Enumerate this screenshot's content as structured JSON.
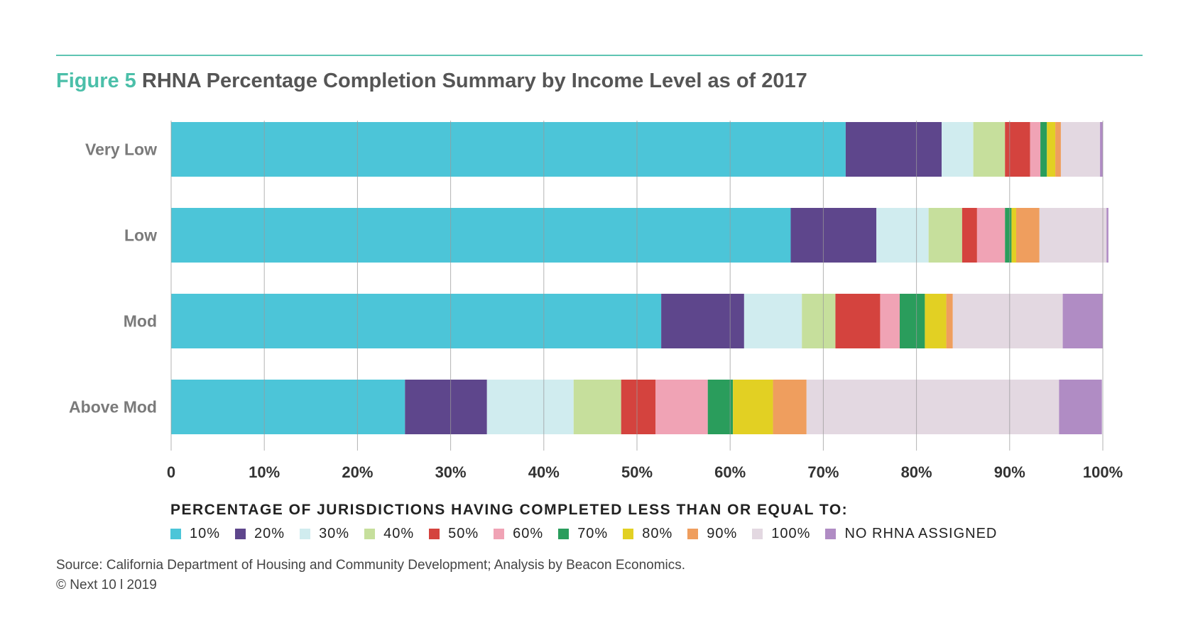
{
  "header": {
    "figure_label": "Figure 5",
    "title": "RHNA Percentage Completion Summary by Income Level as of 2017"
  },
  "legend_title": "PERCENTAGE OF JURISDICTIONS HAVING COMPLETED LESS THAN OR EQUAL TO:",
  "footer": {
    "source": "Source: California Department of Housing and Community Development; Analysis by Beacon Economics.",
    "copyright": "© Next 10 l 2019"
  },
  "colors": {
    "accent": "#4bbfa9",
    "grid": "#999999",
    "axis_label": "#7a7a7a"
  },
  "chart_data": {
    "type": "bar",
    "orientation": "horizontal",
    "stacked": true,
    "categories": [
      "Very Low",
      "Low",
      "Mod",
      "Above Mod"
    ],
    "xlim": [
      0,
      100
    ],
    "x_ticks": [
      "0",
      "10%",
      "20%",
      "30%",
      "40%",
      "50%",
      "60%",
      "70%",
      "80%",
      "90%",
      "100%"
    ],
    "grid": true,
    "legend_position": "bottom",
    "series": [
      {
        "name": "10%",
        "color": "#4cc5d8",
        "values": [
          72.4,
          66.5,
          52.6,
          25.1
        ]
      },
      {
        "name": "20%",
        "color": "#5e468c",
        "values": [
          10.3,
          9.2,
          8.9,
          8.8
        ]
      },
      {
        "name": "30%",
        "color": "#d0ecef",
        "values": [
          3.4,
          5.6,
          6.2,
          9.3
        ]
      },
      {
        "name": "40%",
        "color": "#c6df9c",
        "values": [
          3.4,
          3.6,
          3.6,
          5.1
        ]
      },
      {
        "name": "50%",
        "color": "#d4433e",
        "values": [
          2.7,
          1.6,
          4.8,
          3.7
        ]
      },
      {
        "name": "60%",
        "color": "#f0a3b5",
        "values": [
          1.1,
          3.0,
          2.1,
          5.6
        ]
      },
      {
        "name": "70%",
        "color": "#2a9d5c",
        "values": [
          0.7,
          0.7,
          2.7,
          2.7
        ]
      },
      {
        "name": "80%",
        "color": "#e2d023",
        "values": [
          0.9,
          0.5,
          2.3,
          4.3
        ]
      },
      {
        "name": "90%",
        "color": "#ef9e5e",
        "values": [
          0.6,
          2.5,
          0.7,
          3.6
        ]
      },
      {
        "name": "100%",
        "color": "#e3d8e1",
        "values": [
          4.2,
          7.2,
          11.8,
          27.1
        ]
      },
      {
        "name": "NO RHNA ASSIGNED",
        "color": "#b08cc4",
        "values": [
          0.3,
          0.2,
          4.3,
          4.6
        ]
      }
    ]
  }
}
